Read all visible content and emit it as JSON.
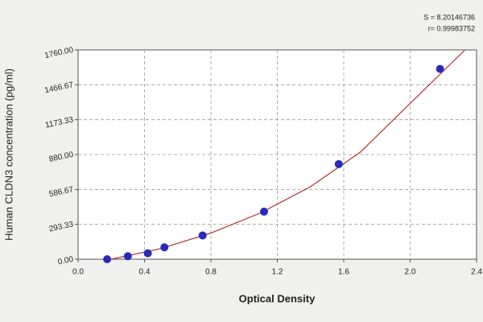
{
  "chart_data": {
    "type": "scatter",
    "x_label": "Optical Density",
    "y_label": "Human CLDN3 concentration (pg/ml)",
    "annotations": [
      "S = 8.20146736",
      "r= 0.99983752"
    ],
    "x": [
      0.175,
      0.3,
      0.42,
      0.52,
      0.75,
      1.12,
      1.57,
      2.18
    ],
    "values": [
      0,
      25,
      50,
      100,
      200,
      400,
      800,
      1600
    ],
    "color": "#2a2ab8",
    "curve": {
      "x": [
        0.2,
        0.5,
        0.8,
        1.1,
        1.4,
        1.7,
        2.0,
        2.33
      ],
      "values": [
        0,
        90,
        220,
        390,
        610,
        900,
        1310,
        1760
      ],
      "color": "#b03030"
    },
    "xlim": [
      0,
      2.4
    ],
    "xticks": [
      {
        "value": 0,
        "label": "0.0"
      },
      0.4,
      0.8,
      1.2,
      1.6,
      {
        "value": 2,
        "label": "2.0"
      },
      2.4
    ],
    "ylim": [
      0,
      1760
    ],
    "yticks": [
      {
        "value": 0,
        "label": "0.00"
      },
      293.33,
      586.67,
      {
        "value": 880,
        "label": "880.00"
      },
      1173.33,
      1466.67,
      {
        "value": 1760,
        "label": "1760.00"
      }
    ],
    "grid": true
  }
}
